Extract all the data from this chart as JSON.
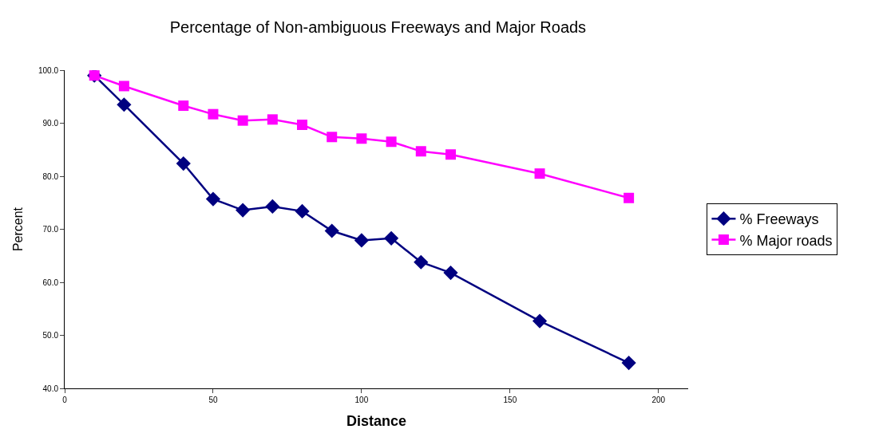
{
  "chart_data": {
    "type": "line",
    "title": "Percentage of Non-ambiguous Freeways and Major Roads",
    "xlabel": "Distance",
    "ylabel": "Percent",
    "x": [
      10,
      20,
      40,
      50,
      60,
      70,
      80,
      90,
      100,
      110,
      120,
      130,
      160,
      190
    ],
    "series": [
      {
        "name": "% Freeways",
        "color": "#000080",
        "marker": "diamond",
        "values": [
          99.0,
          93.5,
          82.4,
          75.7,
          73.6,
          74.3,
          73.4,
          69.7,
          67.9,
          68.3,
          63.8,
          61.8,
          52.7,
          44.8
        ]
      },
      {
        "name": "% Major roads",
        "color": "#ff00ff",
        "marker": "square",
        "values": [
          99.0,
          97.0,
          93.3,
          91.7,
          90.5,
          90.7,
          89.7,
          87.4,
          87.1,
          86.5,
          84.7,
          84.1,
          80.5,
          75.9
        ]
      }
    ],
    "xlim": [
      0,
      210
    ],
    "xticks": [
      0,
      50,
      100,
      150,
      200
    ],
    "ylim": [
      40,
      100
    ],
    "yticks": [
      {
        "value": 40,
        "label": "40.0"
      },
      {
        "value": 50,
        "label": "50.0"
      },
      {
        "value": 60,
        "label": "60.0"
      },
      {
        "value": 70,
        "label": "70.0"
      },
      {
        "value": 80,
        "label": "80.0"
      },
      {
        "value": 90,
        "label": "90.0"
      },
      {
        "value": 100,
        "label": "100.0"
      }
    ],
    "legend": "right",
    "line_style": "solid"
  }
}
